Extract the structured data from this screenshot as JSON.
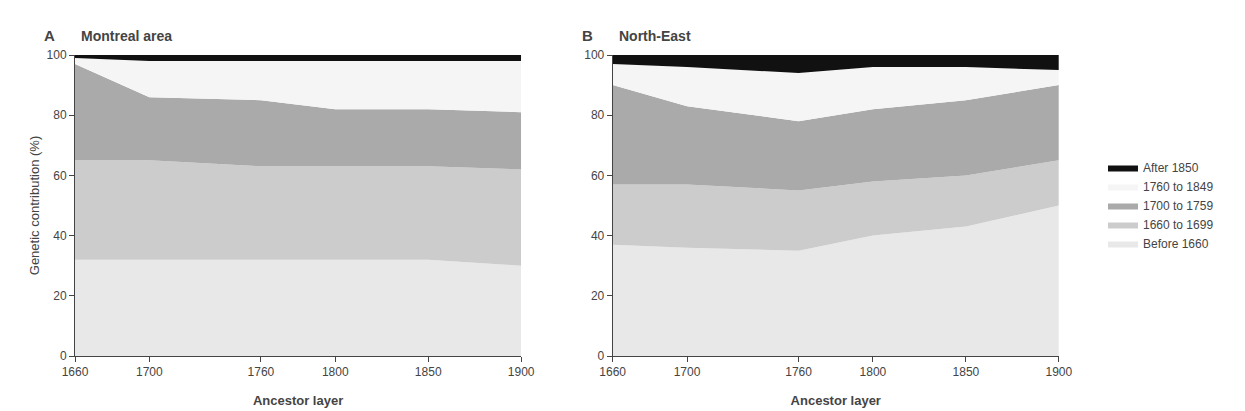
{
  "chart_data": [
    {
      "type": "area",
      "stacked": true,
      "title": "Montreal area",
      "annotations": [
        "A"
      ],
      "xlabel": "Ancestor layer",
      "ylabel": "Genetic contribution (%)",
      "x": [
        1660,
        1700,
        1760,
        1800,
        1850,
        1900
      ],
      "series": [
        {
          "name": "Before 1660",
          "color": "#e8e8e8",
          "values": [
            32,
            32,
            32,
            32,
            32,
            30
          ]
        },
        {
          "name": "1660 to 1699",
          "color": "#cccccc",
          "values": [
            33,
            33,
            31,
            31,
            31,
            32
          ]
        },
        {
          "name": "1700 to 1759",
          "color": "#aaaaaa",
          "values": [
            32,
            21,
            22,
            19,
            19,
            19
          ]
        },
        {
          "name": "1760 to 1849",
          "color": "#f5f5f5",
          "values": [
            2,
            12,
            13,
            16,
            16,
            17
          ]
        },
        {
          "name": "After 1850",
          "color": "#111111",
          "values": [
            1,
            2,
            2,
            2,
            2,
            2
          ]
        }
      ],
      "xlim": [
        1660,
        1900
      ],
      "ylim": [
        0,
        100
      ],
      "xticks": [
        1660,
        1700,
        1760,
        1800,
        1850,
        1900
      ],
      "yticks": [
        0,
        20,
        40,
        60,
        80,
        100
      ],
      "grid": false,
      "legend": "right"
    },
    {
      "type": "area",
      "stacked": true,
      "title": "North-East",
      "annotations": [
        "B"
      ],
      "xlabel": "Ancestor layer",
      "x": [
        1660,
        1700,
        1760,
        1800,
        1850,
        1900
      ],
      "series": [
        {
          "name": "Before 1660",
          "color": "#e8e8e8",
          "values": [
            37,
            36,
            35,
            40,
            43,
            50
          ]
        },
        {
          "name": "1660 to 1699",
          "color": "#cccccc",
          "values": [
            20,
            21,
            20,
            18,
            17,
            15
          ]
        },
        {
          "name": "1700 to 1759",
          "color": "#aaaaaa",
          "values": [
            33,
            26,
            23,
            24,
            25,
            25
          ]
        },
        {
          "name": "1760 to 1849",
          "color": "#f5f5f5",
          "values": [
            7,
            13,
            16,
            14,
            11,
            5
          ]
        },
        {
          "name": "After 1850",
          "color": "#111111",
          "values": [
            3,
            4,
            6,
            4,
            4,
            5
          ]
        }
      ],
      "xlim": [
        1660,
        1900
      ],
      "ylim": [
        0,
        100
      ],
      "xticks": [
        1660,
        1700,
        1760,
        1800,
        1850,
        1900
      ],
      "yticks": [
        0,
        20,
        40,
        60,
        80,
        100
      ],
      "grid": false
    }
  ]
}
